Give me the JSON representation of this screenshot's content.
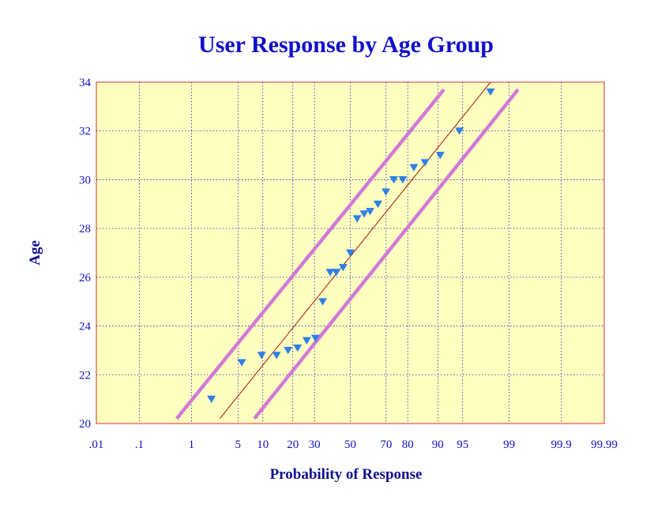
{
  "chart_data": {
    "type": "scatter",
    "title": "User Response by Age Group",
    "xlabel": "Probability of Response",
    "ylabel": "Age",
    "x_scale": "normal-probability",
    "x_ticks": [
      {
        "value": 0.01,
        "label": ".01"
      },
      {
        "value": 0.1,
        "label": ".1"
      },
      {
        "value": 1,
        "label": "1"
      },
      {
        "value": 5,
        "label": "5"
      },
      {
        "value": 10,
        "label": "10"
      },
      {
        "value": 20,
        "label": "20"
      },
      {
        "value": 30,
        "label": "30"
      },
      {
        "value": 50,
        "label": "50"
      },
      {
        "value": 70,
        "label": "70"
      },
      {
        "value": 80,
        "label": "80"
      },
      {
        "value": 90,
        "label": "90"
      },
      {
        "value": 95,
        "label": "95"
      },
      {
        "value": 99,
        "label": "99"
      },
      {
        "value": 99.9,
        "label": "99.9"
      },
      {
        "value": 99.99,
        "label": "99.99"
      }
    ],
    "xlim": [
      0.01,
      99.99
    ],
    "ylim": [
      20,
      34
    ],
    "y_ticks": [
      20,
      22,
      24,
      26,
      28,
      30,
      32,
      34
    ],
    "grid": true,
    "points": [
      {
        "x": 2.1,
        "y": 21.0
      },
      {
        "x": 5.6,
        "y": 22.5
      },
      {
        "x": 9.7,
        "y": 22.8
      },
      {
        "x": 14.0,
        "y": 22.8
      },
      {
        "x": 18.1,
        "y": 23.0
      },
      {
        "x": 22.0,
        "y": 23.1
      },
      {
        "x": 26.2,
        "y": 23.4
      },
      {
        "x": 30.5,
        "y": 23.5
      },
      {
        "x": 34.3,
        "y": 25.0
      },
      {
        "x": 38.4,
        "y": 26.2
      },
      {
        "x": 41.9,
        "y": 26.2
      },
      {
        "x": 45.8,
        "y": 26.4
      },
      {
        "x": 50.0,
        "y": 27.0
      },
      {
        "x": 54.0,
        "y": 28.4
      },
      {
        "x": 58.0,
        "y": 28.6
      },
      {
        "x": 61.4,
        "y": 28.7
      },
      {
        "x": 65.7,
        "y": 29.0
      },
      {
        "x": 69.9,
        "y": 29.5
      },
      {
        "x": 73.8,
        "y": 30.0
      },
      {
        "x": 77.9,
        "y": 30.0
      },
      {
        "x": 82.4,
        "y": 30.5
      },
      {
        "x": 86.3,
        "y": 30.7
      },
      {
        "x": 90.6,
        "y": 31.0
      },
      {
        "x": 94.5,
        "y": 32.0
      },
      {
        "x": 98.0,
        "y": 33.6
      }
    ],
    "fit_line": [
      {
        "x": 2.8,
        "y": 20.2
      },
      {
        "x": 98.0,
        "y": 34.0
      }
    ],
    "upper_band": [
      {
        "x": 0.55,
        "y": 20.2
      },
      {
        "x": 91.5,
        "y": 33.7
      }
    ],
    "lower_band": [
      {
        "x": 8.0,
        "y": 20.2
      },
      {
        "x": 99.3,
        "y": 33.7
      }
    ],
    "colors": {
      "plot_background": "#ffffc0",
      "plot_border": "#cc3333",
      "grid": "#2020c0",
      "marker": "#2f7fe8",
      "fit_line": "#aa1010",
      "band": "#d07ad8",
      "title": "#1010cc",
      "axis_label": "#101090",
      "tick_label": "#1010cc"
    }
  }
}
